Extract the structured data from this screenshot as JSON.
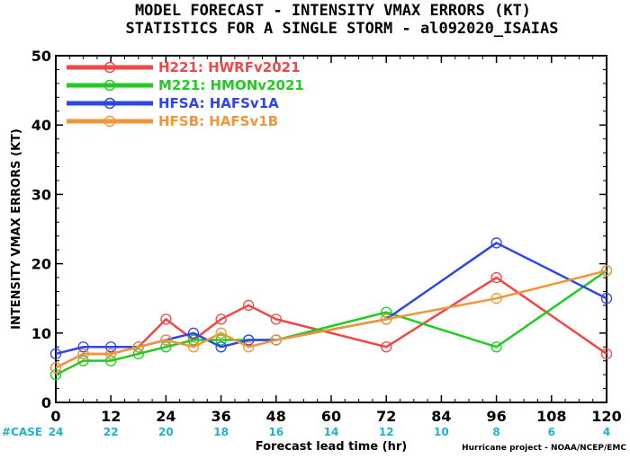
{
  "chart_data": {
    "type": "line",
    "title_line1": "MODEL FORECAST - INTENSITY VMAX ERRORS (KT)",
    "title_line2": "STATISTICS FOR A SINGLE STORM - al092020_ISAIAS",
    "xlabel": "Forecast lead time (hr)",
    "ylabel": "INTENSITY VMAX ERRORS (KT)",
    "xlim": [
      0,
      120
    ],
    "ylim": [
      0,
      50
    ],
    "xticks": [
      0,
      12,
      24,
      36,
      48,
      60,
      72,
      84,
      96,
      108,
      120
    ],
    "yticks": [
      0,
      10,
      20,
      30,
      40,
      50
    ],
    "grid": false,
    "legend_position": "top-left",
    "case_label": "#CASE",
    "case_hours": [
      0,
      12,
      24,
      36,
      48,
      60,
      72,
      84,
      96,
      108,
      120
    ],
    "case_counts": [
      24,
      22,
      20,
      18,
      16,
      14,
      12,
      10,
      8,
      6,
      4
    ],
    "footer": "Hurricane project - NOAA/NCEP/EMC",
    "series": [
      {
        "name": "H221: HWRFv2021",
        "color": "#f04848",
        "x": [
          0,
          6,
          12,
          18,
          24,
          30,
          36,
          42,
          48,
          72,
          96,
          120
        ],
        "y": [
          5,
          7,
          7,
          8,
          12,
          9,
          12,
          14,
          12,
          8,
          18,
          7
        ]
      },
      {
        "name": "M221: HMONv2021",
        "color": "#22cc22",
        "x": [
          0,
          6,
          12,
          18,
          24,
          30,
          36,
          42,
          48,
          72,
          96,
          120
        ],
        "y": [
          4,
          6,
          6,
          7,
          8,
          9,
          9,
          9,
          9,
          13,
          8,
          19
        ]
      },
      {
        "name": "HFSA: HAFSv1A",
        "color": "#2e46e6",
        "x": [
          0,
          6,
          12,
          18,
          24,
          30,
          36,
          42,
          48,
          72,
          96,
          120
        ],
        "y": [
          7,
          8,
          8,
          8,
          9,
          10,
          8,
          9,
          9,
          12,
          23,
          15
        ]
      },
      {
        "name": "HFSB: HAFSv1B",
        "color": "#f09638",
        "x": [
          0,
          6,
          12,
          18,
          24,
          30,
          36,
          42,
          48,
          72,
          96,
          120
        ],
        "y": [
          5,
          7,
          7,
          8,
          9,
          8,
          10,
          8,
          9,
          12,
          15,
          19
        ]
      }
    ]
  }
}
